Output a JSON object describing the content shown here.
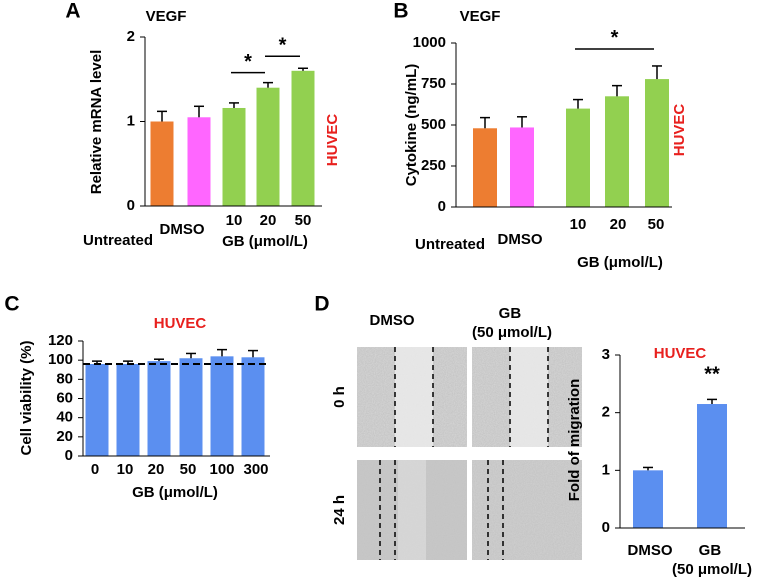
{
  "chart_data": [
    {
      "type": "bar",
      "panel_label": "A",
      "title": "VEGF",
      "note": "HUVEC",
      "categories": [
        "Untreated",
        "DMSO",
        "10",
        "20",
        "50"
      ],
      "values": [
        1.0,
        1.05,
        1.16,
        1.4,
        1.6
      ],
      "errors": [
        0.12,
        0.13,
        0.06,
        0.06,
        0.03
      ],
      "colors": [
        "#ed7d31",
        "#ff66ff",
        "#92d050",
        "#92d050",
        "#92d050"
      ],
      "xlabel": "GB (μmol/L)",
      "ylabel": "Relative mRNA level",
      "ylim": [
        0,
        2
      ],
      "yticks": [
        0,
        1,
        2
      ],
      "significance": [
        {
          "between": [
            "10",
            "20"
          ],
          "label": "*"
        },
        {
          "between": [
            "20",
            "50"
          ],
          "label": "*"
        }
      ]
    },
    {
      "type": "bar",
      "panel_label": "B",
      "title": "VEGF",
      "note": "HUVEC",
      "categories": [
        "Untreated",
        "DMSO",
        "10",
        "20",
        "50"
      ],
      "values": [
        480,
        485,
        600,
        675,
        780
      ],
      "errors": [
        65,
        65,
        55,
        65,
        80
      ],
      "colors": [
        "#ed7d31",
        "#ff66ff",
        "#92d050",
        "#92d050",
        "#92d050"
      ],
      "xlabel": "GB (μmol/L)",
      "ylabel": "Cytokine (ng/mL)",
      "ylim": [
        0,
        1000
      ],
      "yticks": [
        0,
        250,
        500,
        750,
        1000
      ],
      "significance": [
        {
          "between": [
            "10",
            "50"
          ],
          "label": "*"
        }
      ]
    },
    {
      "type": "bar",
      "panel_label": "C",
      "note": "HUVEC",
      "categories": [
        "0",
        "10",
        "20",
        "50",
        "100",
        "300"
      ],
      "values": [
        96,
        96,
        99,
        102,
        104,
        103
      ],
      "errors": [
        3,
        3,
        2,
        5,
        7,
        7
      ],
      "color": "#5b8ff0",
      "reference_line": 96,
      "xlabel": "GB (μmol/L)",
      "ylabel": "Cell viability (%)",
      "ylim": [
        0,
        120
      ],
      "yticks": [
        0,
        20,
        40,
        60,
        80,
        100,
        120
      ]
    },
    {
      "type": "bar",
      "panel_label": "D",
      "note": "HUVEC",
      "categories": [
        "DMSO",
        "GB (50 μmol/L)"
      ],
      "values": [
        1.0,
        2.15
      ],
      "errors": [
        0.05,
        0.08
      ],
      "color": "#5b8ff0",
      "ylabel": "Fold of migration",
      "ylim": [
        0,
        3
      ],
      "yticks": [
        0,
        1,
        2,
        3
      ],
      "significance": [
        {
          "between": [
            "GB (50 μmol/L)"
          ],
          "label": "**"
        }
      ]
    }
  ],
  "micrograph": {
    "columns": [
      "DMSO",
      "GB (50 μmol/L)"
    ],
    "rows": [
      "0 h",
      "24 h"
    ]
  }
}
